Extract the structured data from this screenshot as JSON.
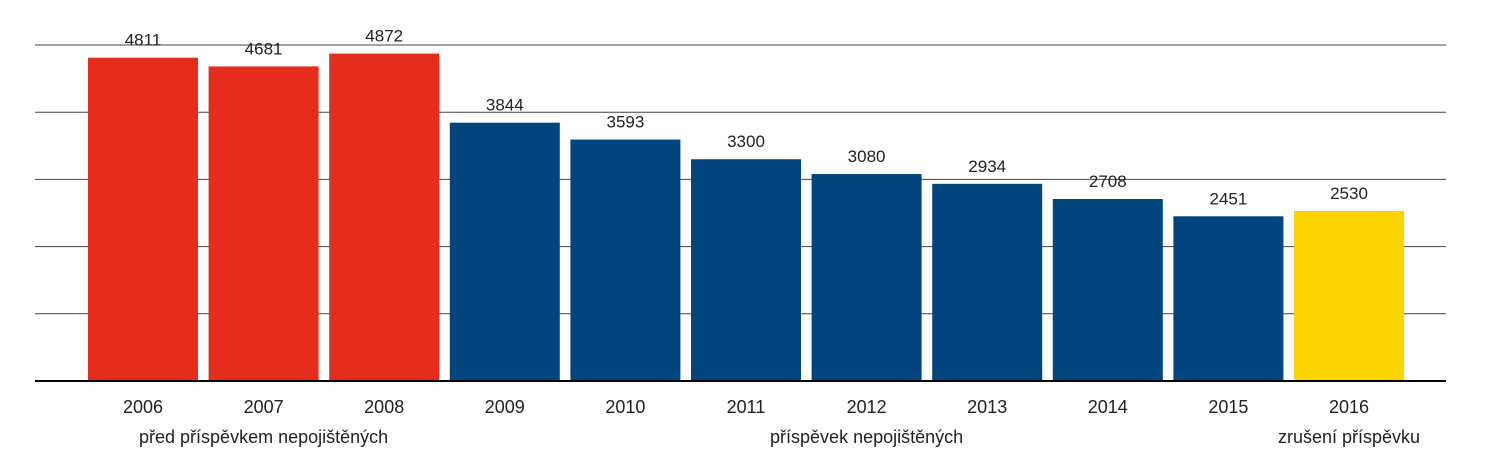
{
  "chart_data": {
    "type": "bar",
    "categories": [
      "2006",
      "2007",
      "2008",
      "2009",
      "2010",
      "2011",
      "2012",
      "2013",
      "2014",
      "2015",
      "2016"
    ],
    "values": [
      4811,
      4681,
      4872,
      3844,
      3593,
      3300,
      3080,
      2934,
      2708,
      2451,
      2530
    ],
    "value_labels": [
      "4811",
      "4681",
      "4872",
      "3844",
      "3593",
      "3300",
      "3080",
      "2934",
      "2708",
      "2451",
      "2530"
    ],
    "ylim": [
      0,
      5000
    ],
    "gridlines": [
      1000,
      2000,
      3000,
      4000,
      5000
    ],
    "grid": true,
    "groups": [
      {
        "label": "před příspěvkem nepojištěných",
        "categories": [
          "2006",
          "2007",
          "2008"
        ],
        "color": "#e42d1a"
      },
      {
        "label": "příspěvek nepojištěných",
        "categories": [
          "2009",
          "2010",
          "2011",
          "2012",
          "2013",
          "2014",
          "2015"
        ],
        "color": "#00457e"
      },
      {
        "label": "zrušení příspěvku",
        "categories": [
          "2016"
        ],
        "color": "#fcd200"
      }
    ]
  }
}
